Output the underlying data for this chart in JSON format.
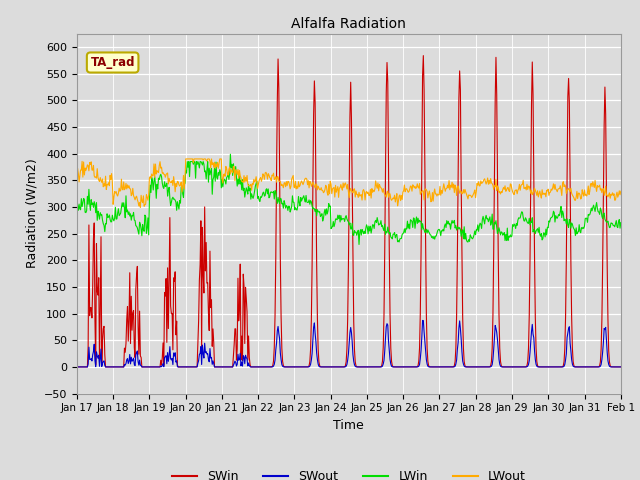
{
  "title": "Alfalfa Radiation",
  "xlabel": "Time",
  "ylabel": "Radiation (W/m2)",
  "ylim": [
    -50,
    625
  ],
  "background_color": "#dcdcdc",
  "plot_bg_color": "#dcdcdc",
  "legend_label": "TA_rad",
  "series": [
    "SWin",
    "SWout",
    "LWin",
    "LWout"
  ],
  "colors": {
    "SWin": "#cc0000",
    "SWout": "#0000cc",
    "LWin": "#00dd00",
    "LWout": "#ffaa00"
  },
  "x_labels": [
    "Jan 17",
    "Jan 18",
    "Jan 19",
    "Jan 20",
    "Jan 21",
    "Jan 22",
    "Jan 23",
    "Jan 24",
    "Jan 25",
    "Jan 26",
    "Jan 27",
    "Jan 28",
    "Jan 29",
    "Jan 30",
    "Jan 31",
    "Feb 1"
  ],
  "n_days": 15
}
